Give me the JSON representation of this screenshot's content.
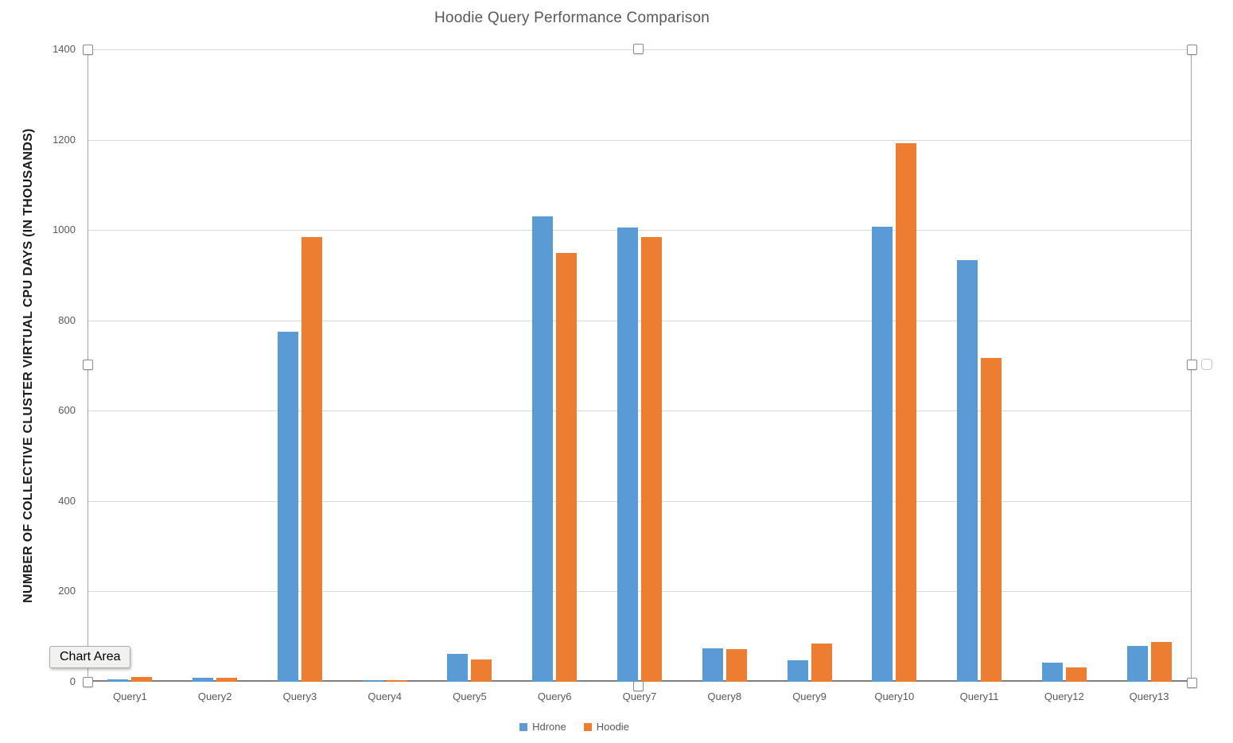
{
  "chart_title": "Hoodie Query Performance Comparison",
  "y_axis_title": "NUMBER OF COLLECTIVE CLUSTER VIRTUAL CPU DAYS (IN THOUSANDS)",
  "tooltip_label": "Chart Area",
  "legend": {
    "items": [
      {
        "label": "Hdrone",
        "color": "#5B9BD5"
      },
      {
        "label": "Hoodie",
        "color": "#ED7D31"
      }
    ]
  },
  "colors": {
    "hdrone_blue": "#5B9BD5",
    "hoodie_orange": "#ED7D31",
    "gridline": "#D9D9D9",
    "axis_line": "#7F7F7F",
    "selection_outline": "#A6A6A6",
    "title_text": "#595959",
    "tick_text": "#595959"
  },
  "chart_data": {
    "type": "bar",
    "title": "Hoodie Query Performance Comparison",
    "xlabel": "",
    "ylabel": "NUMBER OF COLLECTIVE CLUSTER VIRTUAL CPU DAYS (IN THOUSANDS)",
    "categories": [
      "Query1",
      "Query2",
      "Query3",
      "Query4",
      "Query5",
      "Query6",
      "Query7",
      "Query8",
      "Query9",
      "Query10",
      "Query11",
      "Query12",
      "Query13"
    ],
    "series": [
      {
        "name": "Hdrone",
        "color": "#5B9BD5",
        "values": [
          5,
          9,
          775,
          3,
          62,
          1030,
          1005,
          74,
          48,
          1007,
          933,
          42,
          79
        ]
      },
      {
        "name": "Hoodie",
        "color": "#ED7D31",
        "values": [
          10,
          9,
          985,
          4,
          50,
          950,
          985,
          73,
          85,
          1192,
          716,
          32,
          88
        ]
      }
    ],
    "ylim": [
      0,
      1400
    ],
    "ytick_step": 200,
    "grid": true,
    "legend_position": "bottom"
  }
}
